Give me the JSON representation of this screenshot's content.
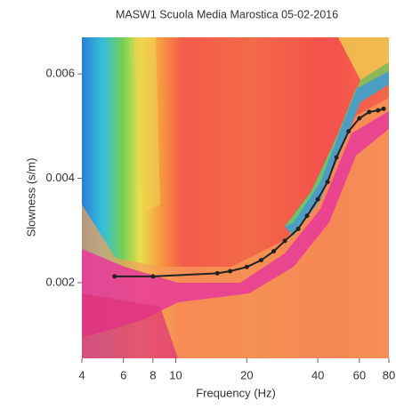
{
  "chart_data": {
    "type": "line",
    "title": "MASW1 Scuola Media Marostica 05-02-2016",
    "x_label": "Frequency (Hz)",
    "y_label": "Slowness (s/m)",
    "x": [
      5.5,
      8,
      15,
      17,
      20,
      23,
      26,
      29,
      33,
      36,
      40,
      44,
      48,
      54,
      60,
      66,
      72,
      76
    ],
    "series": [
      {
        "color": "#222222",
        "values": [
          0.00212,
          0.00212,
          0.00218,
          0.00222,
          0.0023,
          0.00243,
          0.0026,
          0.0028,
          0.00303,
          0.00328,
          0.0036,
          0.00393,
          0.0044,
          0.0049,
          0.00515,
          0.00527,
          0.0053,
          0.00533
        ]
      }
    ],
    "xlim": [
      4,
      80
    ],
    "xticks": [
      4,
      6,
      8,
      10,
      20,
      40,
      60,
      80
    ],
    "xscale": "log",
    "ylim": [
      0.00055,
      0.0067
    ],
    "yticks": [
      0.002,
      0.004,
      0.006
    ]
  }
}
